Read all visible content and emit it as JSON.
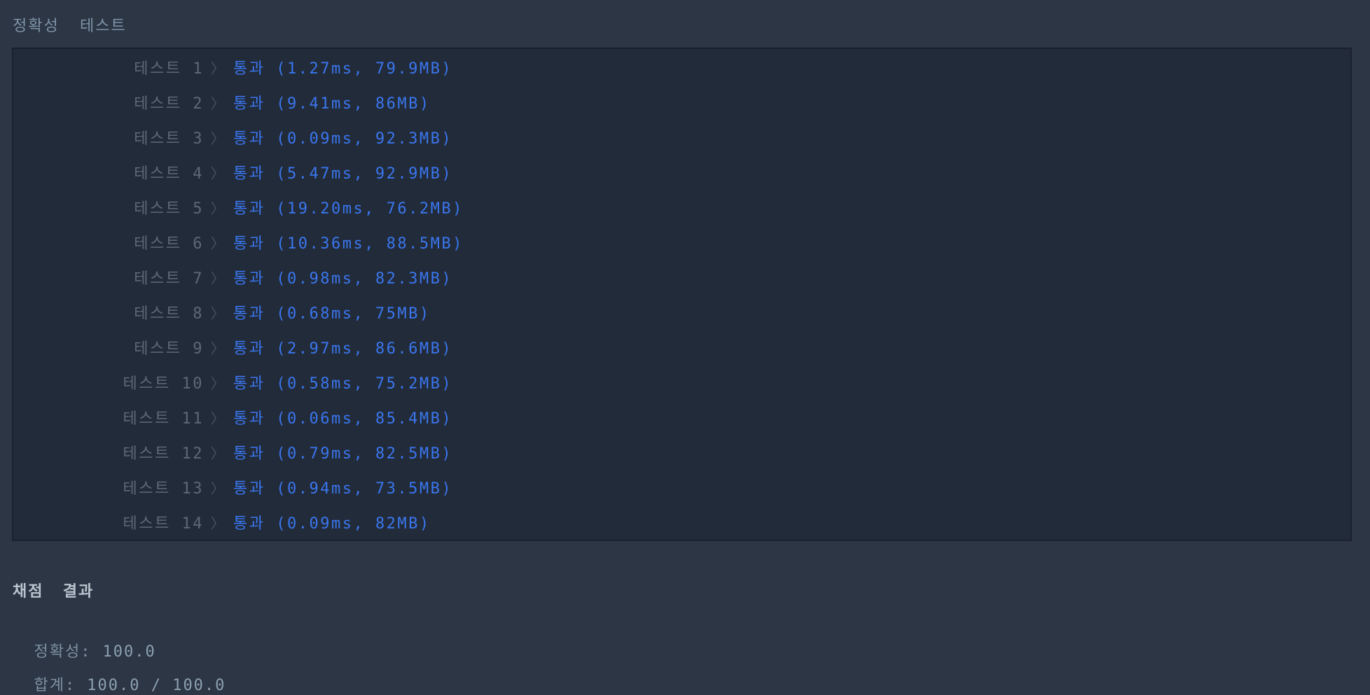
{
  "header": {
    "title": "정확성 테스트"
  },
  "console": {
    "chevron_icon": "〉",
    "tests": [
      {
        "label": "테스트 1",
        "status": "통과",
        "time": "1.27ms",
        "memory": "79.9MB"
      },
      {
        "label": "테스트 2",
        "status": "통과",
        "time": "9.41ms",
        "memory": "86MB"
      },
      {
        "label": "테스트 3",
        "status": "통과",
        "time": "0.09ms",
        "memory": "92.3MB"
      },
      {
        "label": "테스트 4",
        "status": "통과",
        "time": "5.47ms",
        "memory": "92.9MB"
      },
      {
        "label": "테스트 5",
        "status": "통과",
        "time": "19.20ms",
        "memory": "76.2MB"
      },
      {
        "label": "테스트 6",
        "status": "통과",
        "time": "10.36ms",
        "memory": "88.5MB"
      },
      {
        "label": "테스트 7",
        "status": "통과",
        "time": "0.98ms",
        "memory": "82.3MB"
      },
      {
        "label": "테스트 8",
        "status": "통과",
        "time": "0.68ms",
        "memory": "75MB"
      },
      {
        "label": "테스트 9",
        "status": "통과",
        "time": "2.97ms",
        "memory": "86.6MB"
      },
      {
        "label": "테스트 10",
        "status": "통과",
        "time": "0.58ms",
        "memory": "75.2MB"
      },
      {
        "label": "테스트 11",
        "status": "통과",
        "time": "0.06ms",
        "memory": "85.4MB"
      },
      {
        "label": "테스트 12",
        "status": "통과",
        "time": "0.79ms",
        "memory": "82.5MB"
      },
      {
        "label": "테스트 13",
        "status": "통과",
        "time": "0.94ms",
        "memory": "73.5MB"
      },
      {
        "label": "테스트 14",
        "status": "통과",
        "time": "0.09ms",
        "memory": "82MB"
      }
    ]
  },
  "summary": {
    "title": "채점 결과",
    "accuracy": {
      "label": "정확성:",
      "value": "100.0"
    },
    "total": {
      "label": "합계:",
      "value": "100.0 / 100.0"
    }
  },
  "colors": {
    "page_bg": "#2c3645",
    "console_bg": "#222b39",
    "console_border": "#1a212e",
    "pass_blue": "#3a76ee",
    "muted_gray": "#5d6876",
    "heading_gray": "#7e93a6",
    "summary_title": "#b9c4cf"
  }
}
